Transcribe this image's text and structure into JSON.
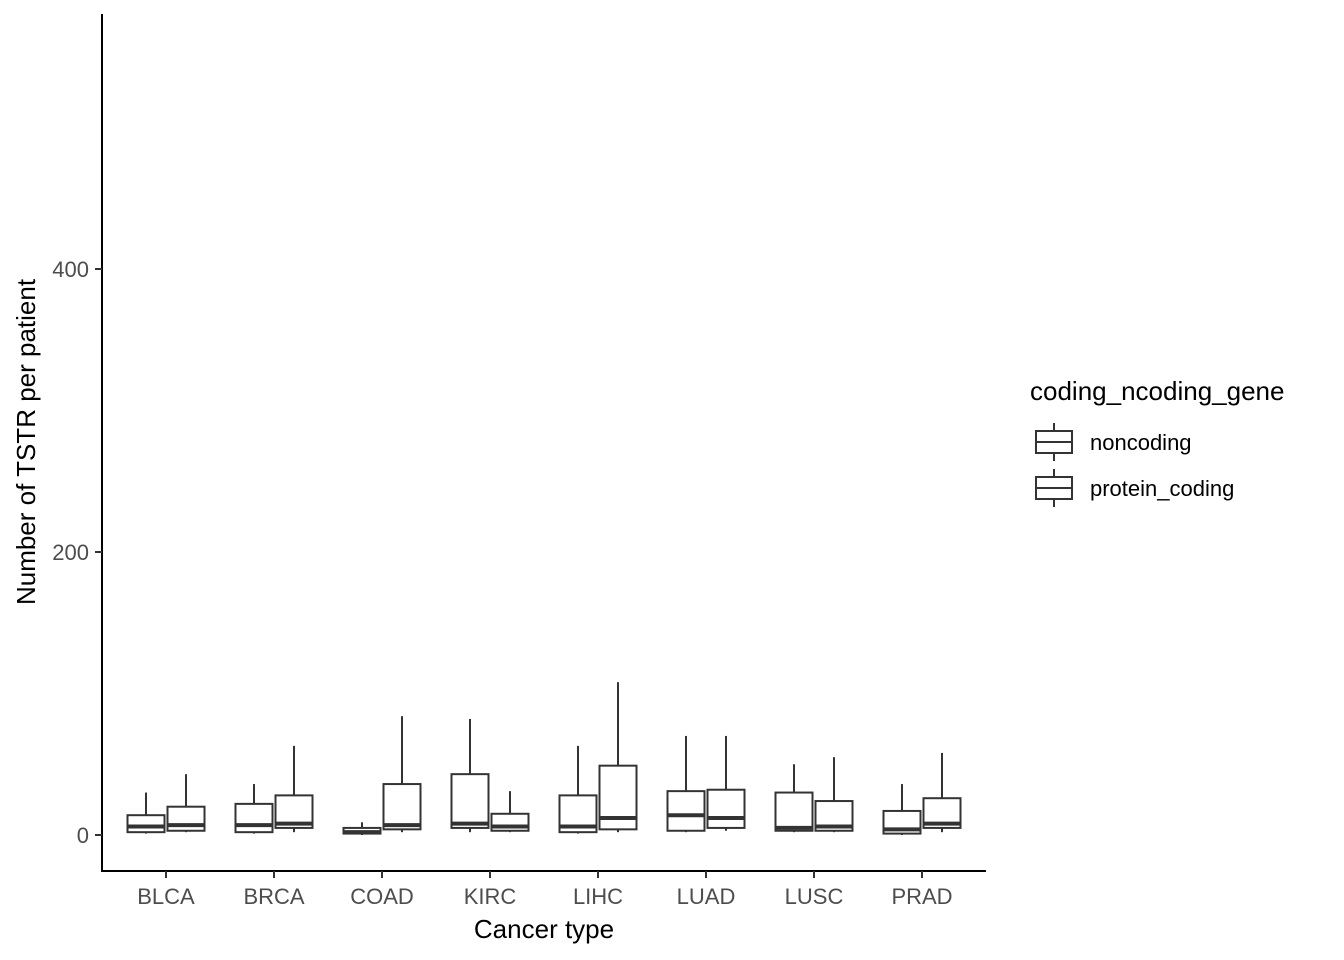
{
  "chart_data": {
    "type": "boxplot",
    "xlabel": "Cancer type",
    "ylabel": "Number of TSTR per patient",
    "ylim": [
      -25,
      580
    ],
    "yticks": [
      0,
      200,
      400
    ],
    "categories": [
      "BLCA",
      "BRCA",
      "COAD",
      "KIRC",
      "LIHC",
      "LUAD",
      "LUSC",
      "PRAD"
    ],
    "legend": {
      "title": "coding_ncoding_gene",
      "placement": "right",
      "entries": [
        "noncoding",
        "protein_coding"
      ]
    },
    "series": [
      {
        "name": "noncoding",
        "boxes": [
          {
            "min": 1,
            "q1": 2,
            "median": 6,
            "q3": 14,
            "max": 30
          },
          {
            "min": 1,
            "q1": 2,
            "median": 7,
            "q3": 22,
            "max": 36
          },
          {
            "min": 0,
            "q1": 1,
            "median": 2,
            "q3": 5,
            "max": 9
          },
          {
            "min": 2,
            "q1": 5,
            "median": 8,
            "q3": 43,
            "max": 82
          },
          {
            "min": 1,
            "q1": 2,
            "median": 6,
            "q3": 28,
            "max": 63
          },
          {
            "min": 2,
            "q1": 3,
            "median": 14,
            "q3": 31,
            "max": 70
          },
          {
            "min": 2,
            "q1": 3,
            "median": 5,
            "q3": 30,
            "max": 50
          },
          {
            "min": 0,
            "q1": 1,
            "median": 4,
            "q3": 17,
            "max": 36
          }
        ]
      },
      {
        "name": "protein_coding",
        "boxes": [
          {
            "min": 2,
            "q1": 3,
            "median": 7,
            "q3": 20,
            "max": 43
          },
          {
            "min": 2,
            "q1": 5,
            "median": 8,
            "q3": 28,
            "max": 63
          },
          {
            "min": 2,
            "q1": 4,
            "median": 7,
            "q3": 36,
            "max": 84
          },
          {
            "min": 2,
            "q1": 3,
            "median": 6,
            "q3": 15,
            "max": 31
          },
          {
            "min": 2,
            "q1": 4,
            "median": 12,
            "q3": 49,
            "max": 108
          },
          {
            "min": 3,
            "q1": 5,
            "median": 12,
            "q3": 32,
            "max": 70
          },
          {
            "min": 2,
            "q1": 3,
            "median": 6,
            "q3": 24,
            "max": 55
          },
          {
            "min": 2,
            "q1": 5,
            "median": 8,
            "q3": 26,
            "max": 58
          }
        ]
      }
    ]
  }
}
